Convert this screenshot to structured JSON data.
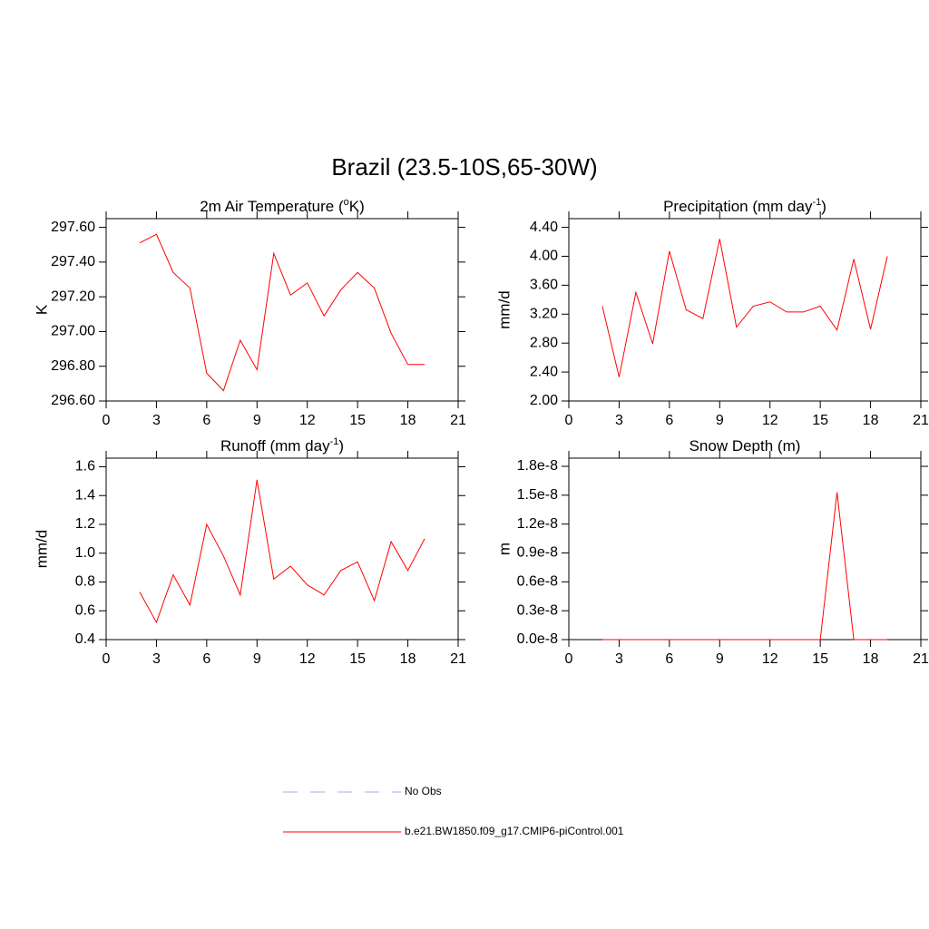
{
  "title": "Brazil (23.5-10S,65-30W)",
  "legend": [
    {
      "name": "No Obs",
      "color": "#aaaaee",
      "dash": true
    },
    {
      "name": "b.e21.BW1850.f09_g17.CMIP6-piControl.001",
      "color": "#ff0000",
      "dash": false
    }
  ],
  "chart_data": [
    {
      "type": "line",
      "title": [
        "2m Air Temperature (",
        "o",
        "K)"
      ],
      "ylabel": "K",
      "x": [
        2,
        3,
        4,
        5,
        6,
        7,
        8,
        9,
        10,
        11,
        12,
        13,
        14,
        15,
        16,
        17,
        18,
        19
      ],
      "series": [
        {
          "color": "#ff0000",
          "values": [
            297.51,
            297.56,
            297.34,
            297.25,
            296.76,
            296.66,
            296.95,
            296.78,
            297.45,
            297.21,
            297.28,
            297.09,
            297.24,
            297.34,
            297.25,
            296.99,
            296.81,
            296.81
          ]
        }
      ],
      "xlim": [
        0,
        21
      ],
      "ylim": [
        296.6,
        297.65
      ],
      "xticks": [
        0,
        3,
        6,
        9,
        12,
        15,
        18,
        21
      ],
      "yticks": [
        {
          "value": 296.6,
          "label": "296.60"
        },
        {
          "value": 296.8,
          "label": "296.80"
        },
        {
          "value": 297,
          "label": "297.00"
        },
        {
          "value": 297.2,
          "label": "297.20"
        },
        {
          "value": 297.4,
          "label": "297.40"
        },
        {
          "value": 297.6,
          "label": "297.60"
        }
      ]
    },
    {
      "type": "line",
      "title": [
        "Precipitation (mm day",
        "-1",
        ")"
      ],
      "ylabel": "mm/d",
      "x": [
        2,
        3,
        4,
        5,
        6,
        7,
        8,
        9,
        10,
        11,
        12,
        13,
        14,
        15,
        16,
        17,
        18,
        19
      ],
      "series": [
        {
          "color": "#ff0000",
          "values": [
            3.31,
            2.33,
            3.5,
            2.79,
            4.07,
            3.26,
            3.14,
            4.24,
            3.02,
            3.31,
            3.37,
            3.23,
            3.23,
            3.31,
            2.98,
            3.96,
            2.99,
            4.0
          ]
        }
      ],
      "xlim": [
        0,
        21
      ],
      "ylim": [
        2.0,
        4.52
      ],
      "xticks": [
        0,
        3,
        6,
        9,
        12,
        15,
        18,
        21
      ],
      "yticks": [
        {
          "value": 2,
          "label": "2.00"
        },
        {
          "value": 2.4,
          "label": "2.40"
        },
        {
          "value": 2.8,
          "label": "2.80"
        },
        {
          "value": 3.2,
          "label": "3.20"
        },
        {
          "value": 3.6,
          "label": "3.60"
        },
        {
          "value": 4,
          "label": "4.00"
        },
        {
          "value": 4.4,
          "label": "4.40"
        }
      ]
    },
    {
      "type": "line",
      "title": [
        "Runoff (mm day",
        "-1",
        ")"
      ],
      "ylabel": "mm/d",
      "x": [
        2,
        3,
        4,
        5,
        6,
        7,
        8,
        9,
        10,
        11,
        12,
        13,
        14,
        15,
        16,
        17,
        18,
        19
      ],
      "series": [
        {
          "color": "#ff0000",
          "values": [
            0.73,
            0.52,
            0.85,
            0.64,
            1.2,
            0.98,
            0.71,
            1.51,
            0.82,
            0.91,
            0.78,
            0.71,
            0.88,
            0.94,
            0.67,
            1.08,
            0.88,
            1.1
          ]
        }
      ],
      "xlim": [
        0,
        21
      ],
      "ylim": [
        0.4,
        1.66
      ],
      "xticks": [
        0,
        3,
        6,
        9,
        12,
        15,
        18,
        21
      ],
      "yticks": [
        0.4,
        0.6,
        0.8,
        {
          "value": 1,
          "label": "1.0"
        },
        1.2,
        1.4,
        1.6
      ]
    },
    {
      "type": "line",
      "title": [
        "Snow Depth (m)"
      ],
      "ylabel": "m",
      "x": [
        2,
        3,
        4,
        5,
        6,
        7,
        8,
        9,
        10,
        11,
        12,
        13,
        14,
        15,
        16,
        17,
        18,
        19
      ],
      "series": [
        {
          "color": "#ff0000",
          "values": [
            0,
            0,
            0,
            0,
            0,
            0,
            0,
            0,
            0,
            0,
            0,
            0,
            0,
            0,
            1.53e-08,
            0,
            0,
            0
          ]
        }
      ],
      "xlim": [
        0,
        21
      ],
      "ylim": [
        0,
        1.885e-08
      ],
      "xticks": [
        0,
        3,
        6,
        9,
        12,
        15,
        18,
        21
      ],
      "yticks": [
        {
          "value": 0,
          "label": "0.0e-8"
        },
        {
          "value": 3e-09,
          "label": "0.3e-8"
        },
        {
          "value": 6e-09,
          "label": "0.6e-8"
        },
        {
          "value": 9e-09,
          "label": "0.9e-8"
        },
        {
          "value": 1.2e-08,
          "label": "1.2e-8"
        },
        {
          "value": 1.5e-08,
          "label": "1.5e-8"
        },
        {
          "value": 1.8e-08,
          "label": "1.8e-8"
        }
      ]
    }
  ]
}
